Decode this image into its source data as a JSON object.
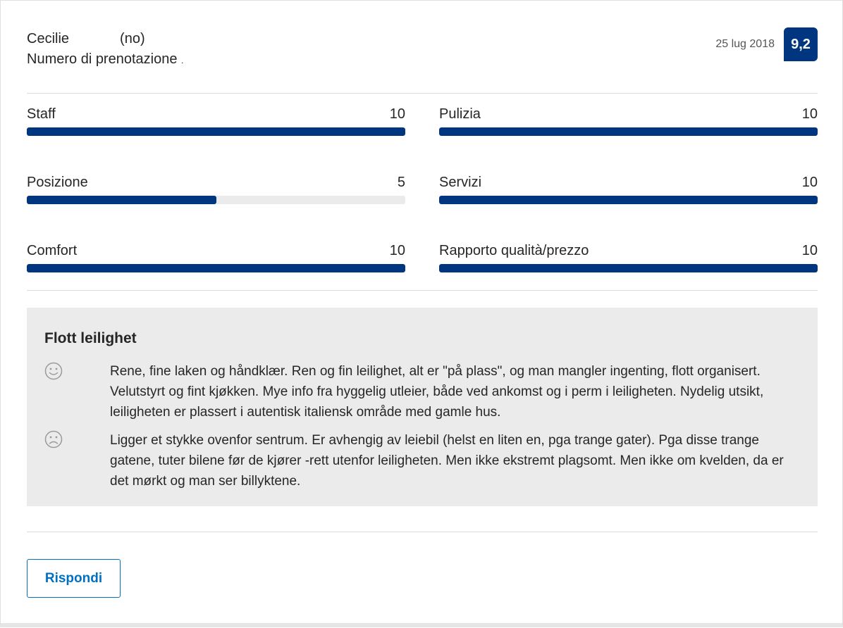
{
  "reviewer": {
    "name": "Cecilie",
    "country": "(no)",
    "booking_label": "Numero di prenotazione",
    "booking_number": "."
  },
  "review_date": "25 lug 2018",
  "score": "9,2",
  "accent_color": "#003580",
  "link_color": "#0071c2",
  "metrics": [
    {
      "label": "Staff",
      "value": "10",
      "fill": 1.0
    },
    {
      "label": "Pulizia",
      "value": "10",
      "fill": 1.0
    },
    {
      "label": "Posizione",
      "value": "5",
      "fill": 0.5
    },
    {
      "label": "Servizi",
      "value": "10",
      "fill": 1.0
    },
    {
      "label": "Comfort",
      "value": "10",
      "fill": 1.0
    },
    {
      "label": "Rapporto qualità/prezzo",
      "value": "10",
      "fill": 1.0
    }
  ],
  "review": {
    "title": "Flott leilighet",
    "positive_icon": "smiley-happy-icon",
    "positive": "Rene, fine laken og håndklær. Ren og fin leilighet, alt er \"på plass\", og man mangler ingenting, flott organisert. Velutstyrt og fint kjøkken. Mye info fra hyggelig utleier, både ved ankomst og i perm i leiligheten. Nydelig utsikt, leiligheten er plassert i autentisk italiensk område med gamle hus.",
    "negative_icon": "smiley-sad-icon",
    "negative": "Ligger et stykke ovenfor sentrum. Er avhengig av leiebil (helst en liten en, pga trange gater). Pga disse trange gatene, tuter bilene før de kjører -rett utenfor leiligheten. Men ikke ekstremt plagsomt. Men ikke om kvelden, da er det mørkt og man ser billyktene."
  },
  "reply_label": "Rispondi"
}
